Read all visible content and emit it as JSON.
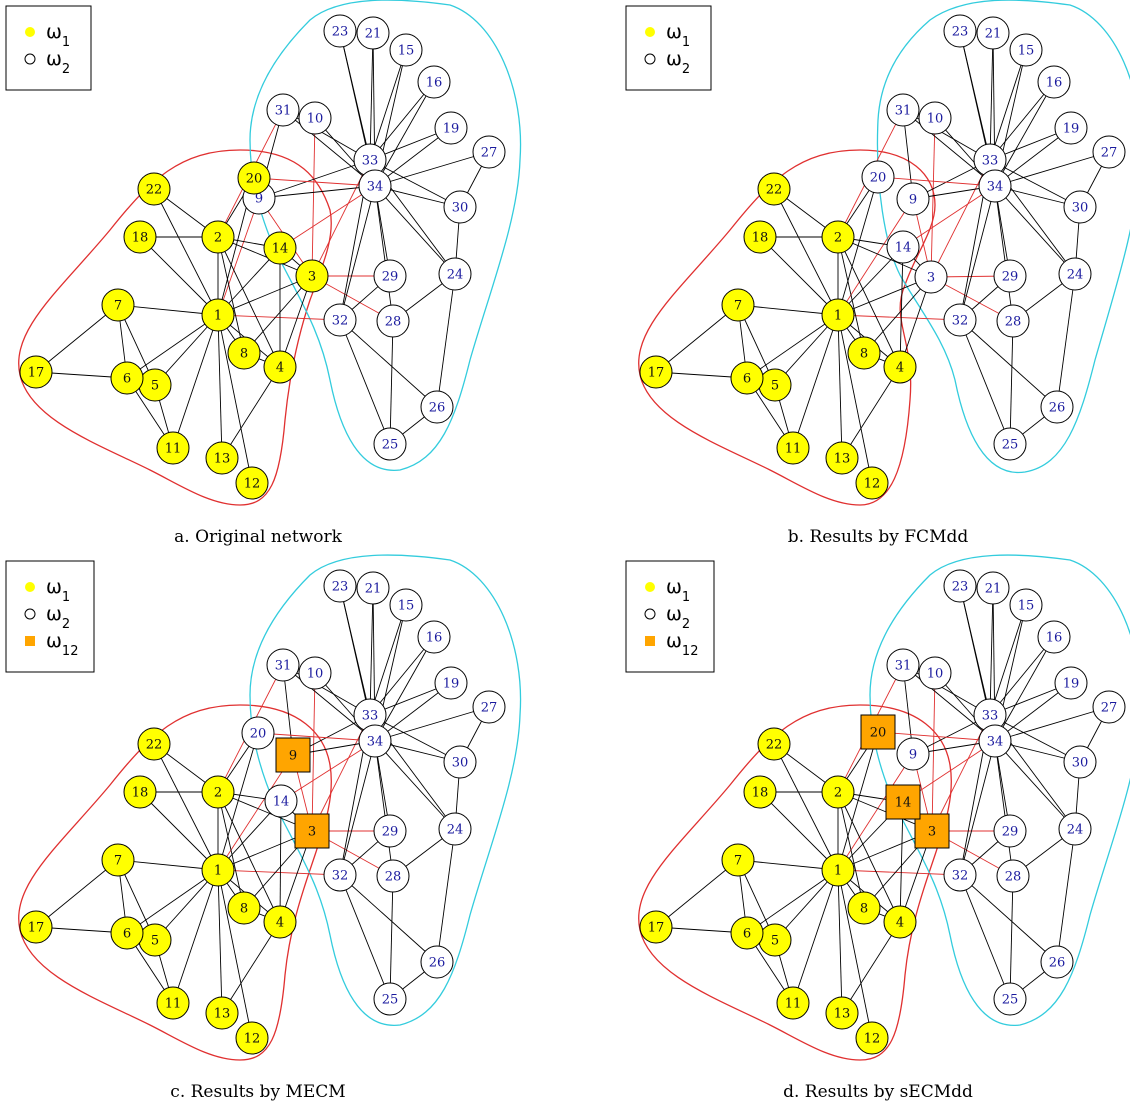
{
  "colors": {
    "cluster1": "#ffff00",
    "cluster2": "#ffffff",
    "overlap": "#ffa500",
    "hull_cluster1": "#e03030",
    "hull_cluster2": "#33ccdd",
    "edge_intra": "#000000",
    "edge_inter": "#e03030",
    "node_label": "#1a1a9e"
  },
  "legend": {
    "omega1": "ω",
    "omega1_sub": "1",
    "omega2": "ω",
    "omega2_sub": "2",
    "omega12": "ω",
    "omega12_sub": "12"
  },
  "panels": [
    {
      "id": "a",
      "caption": "a. Original network",
      "legend_entries": [
        "w1",
        "w2"
      ],
      "cluster1": [
        1,
        2,
        3,
        4,
        5,
        6,
        7,
        8,
        11,
        12,
        13,
        14,
        17,
        18,
        20,
        22
      ],
      "cluster2": [
        9,
        10,
        15,
        16,
        19,
        21,
        23,
        24,
        25,
        26,
        27,
        28,
        29,
        30,
        31,
        32,
        33,
        34
      ],
      "overlap": []
    },
    {
      "id": "b",
      "caption": "b. Results by FCMdd",
      "legend_entries": [
        "w1",
        "w2"
      ],
      "cluster1": [
        1,
        2,
        4,
        5,
        6,
        7,
        8,
        11,
        12,
        13,
        17,
        18,
        22
      ],
      "cluster2": [
        3,
        9,
        10,
        14,
        15,
        16,
        19,
        20,
        21,
        23,
        24,
        25,
        26,
        27,
        28,
        29,
        30,
        31,
        32,
        33,
        34
      ],
      "overlap": []
    },
    {
      "id": "c",
      "caption": "c. Results by MECM",
      "legend_entries": [
        "w1",
        "w2",
        "w12"
      ],
      "cluster1": [
        1,
        2,
        4,
        5,
        6,
        7,
        8,
        11,
        12,
        13,
        17,
        18,
        22
      ],
      "cluster2": [
        10,
        14,
        15,
        16,
        19,
        20,
        21,
        23,
        24,
        25,
        26,
        27,
        28,
        29,
        30,
        31,
        32,
        33,
        34
      ],
      "overlap": [
        3,
        9
      ]
    },
    {
      "id": "d",
      "caption": "d. Results by sECMdd",
      "legend_entries": [
        "w1",
        "w2",
        "w12"
      ],
      "cluster1": [
        1,
        2,
        4,
        5,
        6,
        7,
        8,
        11,
        12,
        13,
        17,
        18,
        22
      ],
      "cluster2": [
        9,
        10,
        15,
        16,
        19,
        21,
        23,
        24,
        25,
        26,
        27,
        28,
        29,
        30,
        31,
        32,
        33,
        34
      ],
      "overlap": [
        3,
        14,
        20
      ]
    }
  ],
  "network": {
    "nodes": [
      1,
      2,
      3,
      4,
      5,
      6,
      7,
      8,
      9,
      10,
      11,
      12,
      13,
      14,
      15,
      16,
      17,
      18,
      19,
      20,
      21,
      22,
      23,
      24,
      25,
      26,
      27,
      28,
      29,
      30,
      31,
      32,
      33,
      34
    ],
    "edges": [
      [
        1,
        2
      ],
      [
        1,
        3
      ],
      [
        1,
        4
      ],
      [
        1,
        5
      ],
      [
        1,
        6
      ],
      [
        1,
        7
      ],
      [
        1,
        8
      ],
      [
        1,
        9
      ],
      [
        1,
        11
      ],
      [
        1,
        12
      ],
      [
        1,
        13
      ],
      [
        1,
        14
      ],
      [
        1,
        18
      ],
      [
        1,
        20
      ],
      [
        1,
        22
      ],
      [
        1,
        32
      ],
      [
        2,
        3
      ],
      [
        2,
        4
      ],
      [
        2,
        8
      ],
      [
        2,
        14
      ],
      [
        2,
        18
      ],
      [
        2,
        20
      ],
      [
        2,
        22
      ],
      [
        2,
        31
      ],
      [
        3,
        4
      ],
      [
        3,
        8
      ],
      [
        3,
        9
      ],
      [
        3,
        10
      ],
      [
        3,
        14
      ],
      [
        3,
        28
      ],
      [
        3,
        29
      ],
      [
        3,
        33
      ],
      [
        4,
        8
      ],
      [
        4,
        13
      ],
      [
        4,
        14
      ],
      [
        5,
        7
      ],
      [
        5,
        11
      ],
      [
        6,
        7
      ],
      [
        6,
        11
      ],
      [
        6,
        17
      ],
      [
        7,
        17
      ],
      [
        9,
        31
      ],
      [
        9,
        33
      ],
      [
        9,
        34
      ],
      [
        10,
        34
      ],
      [
        14,
        34
      ],
      [
        15,
        33
      ],
      [
        15,
        34
      ],
      [
        16,
        33
      ],
      [
        16,
        34
      ],
      [
        19,
        33
      ],
      [
        19,
        34
      ],
      [
        20,
        34
      ],
      [
        21,
        33
      ],
      [
        21,
        34
      ],
      [
        23,
        33
      ],
      [
        23,
        34
      ],
      [
        24,
        26
      ],
      [
        24,
        28
      ],
      [
        24,
        30
      ],
      [
        24,
        33
      ],
      [
        24,
        34
      ],
      [
        25,
        26
      ],
      [
        25,
        28
      ],
      [
        25,
        32
      ],
      [
        26,
        32
      ],
      [
        27,
        30
      ],
      [
        27,
        34
      ],
      [
        28,
        34
      ],
      [
        29,
        32
      ],
      [
        29,
        34
      ],
      [
        30,
        33
      ],
      [
        30,
        34
      ],
      [
        31,
        33
      ],
      [
        31,
        34
      ],
      [
        32,
        33
      ],
      [
        32,
        34
      ],
      [
        33,
        34
      ]
    ]
  }
}
